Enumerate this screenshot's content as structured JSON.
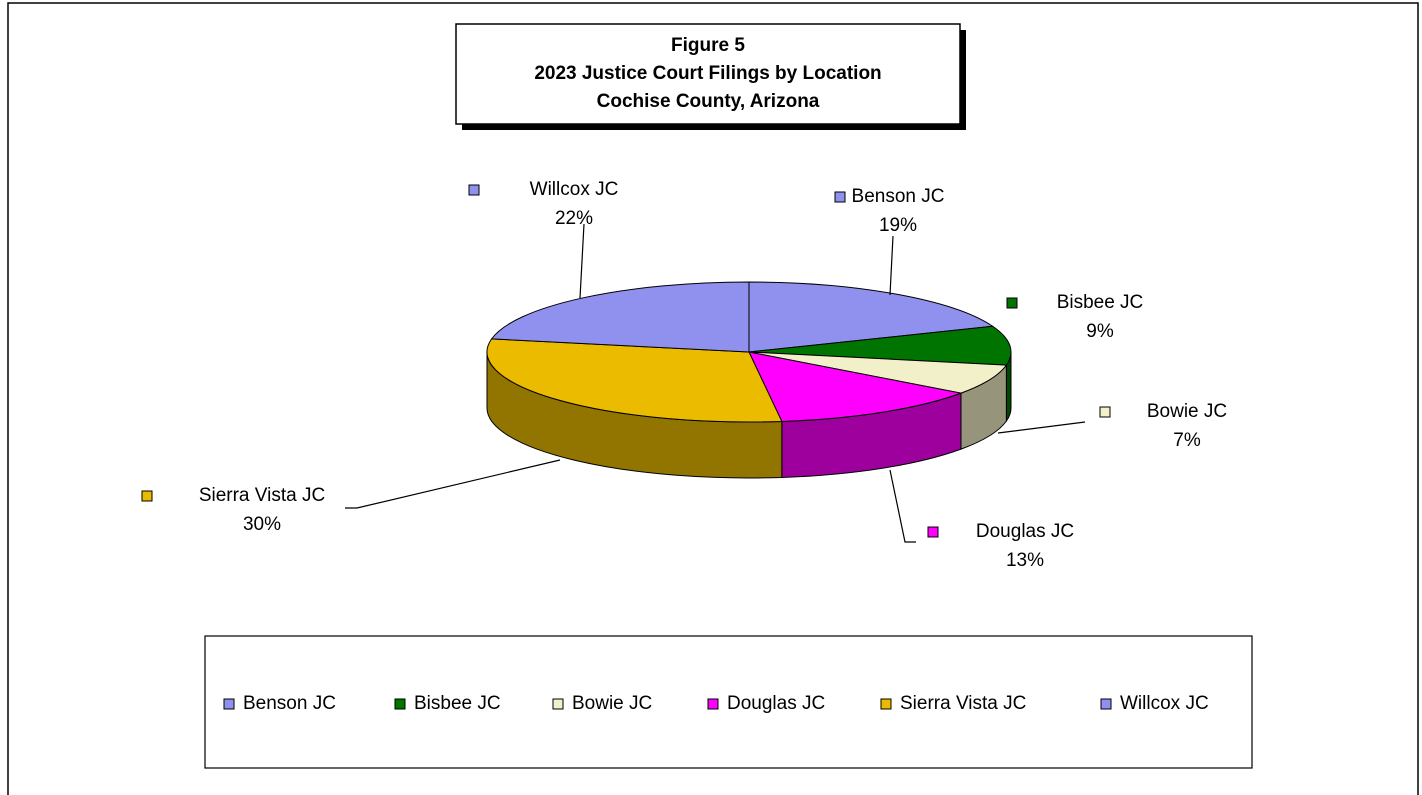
{
  "chart_data": {
    "type": "pie3d",
    "title": [
      "Figure 5",
      "2023 Justice Court Filings by Location",
      "Cochise County, Arizona"
    ],
    "categories": [
      "Benson JC",
      "Bisbee JC",
      "Bowie JC",
      "Douglas JC",
      "Sierra Vista JC",
      "Willcox JC"
    ],
    "values": [
      19,
      9,
      7,
      13,
      30,
      22
    ],
    "value_labels": [
      "19%",
      "9%",
      "7%",
      "13%",
      "30%",
      "22%"
    ],
    "colors": [
      "#9090ee",
      "#007400",
      "#f2f0c8",
      "#ff00ff",
      "#ebbb00",
      "#9090ee"
    ],
    "legend": "bottom"
  }
}
